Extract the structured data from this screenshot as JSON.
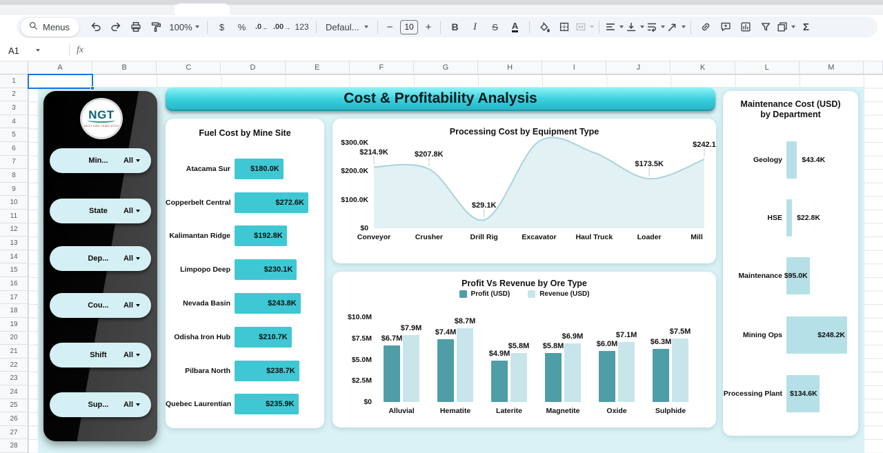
{
  "toolbar": {
    "menus_label": "Menus",
    "zoom": "100%",
    "currency": "$",
    "percent": "%",
    "dec_decimal": ".0",
    "dec_arrow": "←",
    "inc_decimal": ".00",
    "inc_arrow": "→",
    "more_formats": "123",
    "font_name": "Defaul...",
    "minus": "−",
    "font_size": "10",
    "plus": "+",
    "bold": "B",
    "italic": "I",
    "strikethrough": "S",
    "text_color": "A",
    "sum": "Σ"
  },
  "formula_bar": {
    "cell_ref": "A1",
    "fx": "fx"
  },
  "grid": {
    "columns": [
      "A",
      "B",
      "C",
      "D",
      "E",
      "F",
      "G",
      "H",
      "I",
      "J",
      "K",
      "L",
      "M"
    ],
    "row_count": 28
  },
  "dashboard": {
    "title": "Cost & Profitability Analysis",
    "logo": {
      "text": "NGT",
      "caption": "NEXT GEN TEMPLATES"
    },
    "filters": [
      {
        "label": "Min...",
        "value": "All"
      },
      {
        "label": "State",
        "value": "All"
      },
      {
        "label": "Dep...",
        "value": "All"
      },
      {
        "label": "Cou...",
        "value": "All"
      },
      {
        "label": "Shift",
        "value": "All"
      },
      {
        "label": "Sup...",
        "value": "All"
      }
    ],
    "colors": {
      "background": "#d9f2f5",
      "banner_top": "#8ef2f6",
      "banner_bottom": "#28b5c8"
    }
  },
  "chart_data": [
    {
      "type": "bar",
      "orientation": "horizontal",
      "title": "Fuel Cost by Mine Site",
      "categories": [
        "Atacama Sur",
        "Copperbelt Central",
        "Kalimantan Ridge",
        "Limpopo Deep",
        "Nevada Basin",
        "Odisha Iron Hub",
        "Pilbara North",
        "Quebec Laurentian"
      ],
      "values_thousand_usd": [
        180.0,
        272.6,
        192.8,
        230.1,
        243.8,
        210.7,
        238.7,
        235.9
      ],
      "labels": [
        "$180.0K",
        "$272.6K",
        "$192.8K",
        "$230.1K",
        "$243.8K",
        "$210.7K",
        "$238.7K",
        "$235.9K"
      ],
      "bar_color": "#3fc8d4",
      "xlim": [
        0,
        280
      ]
    },
    {
      "type": "area",
      "title": "Processing Cost by Equipment Type",
      "categories": [
        "Conveyor",
        "Crusher",
        "Drill Rig",
        "Excavator",
        "Haul Truck",
        "Loader",
        "Mill"
      ],
      "values_thousand_usd": [
        214.9,
        207.8,
        29.1,
        305,
        265,
        173.5,
        242.1
      ],
      "labels": [
        "$214.9K",
        "$207.8K",
        "$29.1K",
        "",
        "",
        "$173.5K",
        "$242.1"
      ],
      "y_ticks": [
        "$300.0K",
        "$200.0K",
        "$100.0K",
        "$0"
      ],
      "ylim": [
        0,
        300
      ],
      "fill_color": "#e2f1f4",
      "stroke_color": "#a9d3dc",
      "note": "Excavator and Haul Truck values estimated from curve; their data labels are not visible"
    },
    {
      "type": "bar-grouped",
      "title": "Profit Vs Revenue by Ore Type",
      "categories": [
        "Alluvial",
        "Hematite",
        "Laterite",
        "Magnetite",
        "Oxide",
        "Sulphide"
      ],
      "series": [
        {
          "name": "Profit (USD)",
          "color": "#4f9da6",
          "values_million_usd": [
            6.7,
            7.4,
            4.9,
            5.8,
            6.0,
            6.3
          ],
          "labels": [
            "$6.7M",
            "$7.4M",
            "$4.9M",
            "$5.8M",
            "$6.0M",
            "$6.3M"
          ]
        },
        {
          "name": "Revenue (USD)",
          "color": "#c7e5ea",
          "values_million_usd": [
            7.9,
            8.7,
            5.8,
            6.9,
            7.1,
            7.5
          ],
          "labels": [
            "$7.9M",
            "$8.7M",
            "$5.8M",
            "$6.9M",
            "$7.1M",
            "$7.5M"
          ]
        }
      ],
      "y_ticks": [
        "$10.0M",
        "$7.5M",
        "$5.0M",
        "$2.5M",
        "$0"
      ],
      "ylim": [
        0,
        10
      ],
      "legend_position": "top"
    },
    {
      "type": "bar",
      "orientation": "horizontal",
      "title": "Maintenance Cost (USD) by Department",
      "categories": [
        "Geology",
        "HSE",
        "Maintenance",
        "Mining Ops",
        "Processing Plant"
      ],
      "values_thousand_usd": [
        43.4,
        22.8,
        95.0,
        248.2,
        134.6
      ],
      "labels": [
        "$43.4K",
        "$22.8K",
        "$95.0K",
        "$248.2K",
        "$134.6K"
      ],
      "bar_color": "#b6e0e7",
      "xlim": [
        0,
        250
      ]
    }
  ]
}
